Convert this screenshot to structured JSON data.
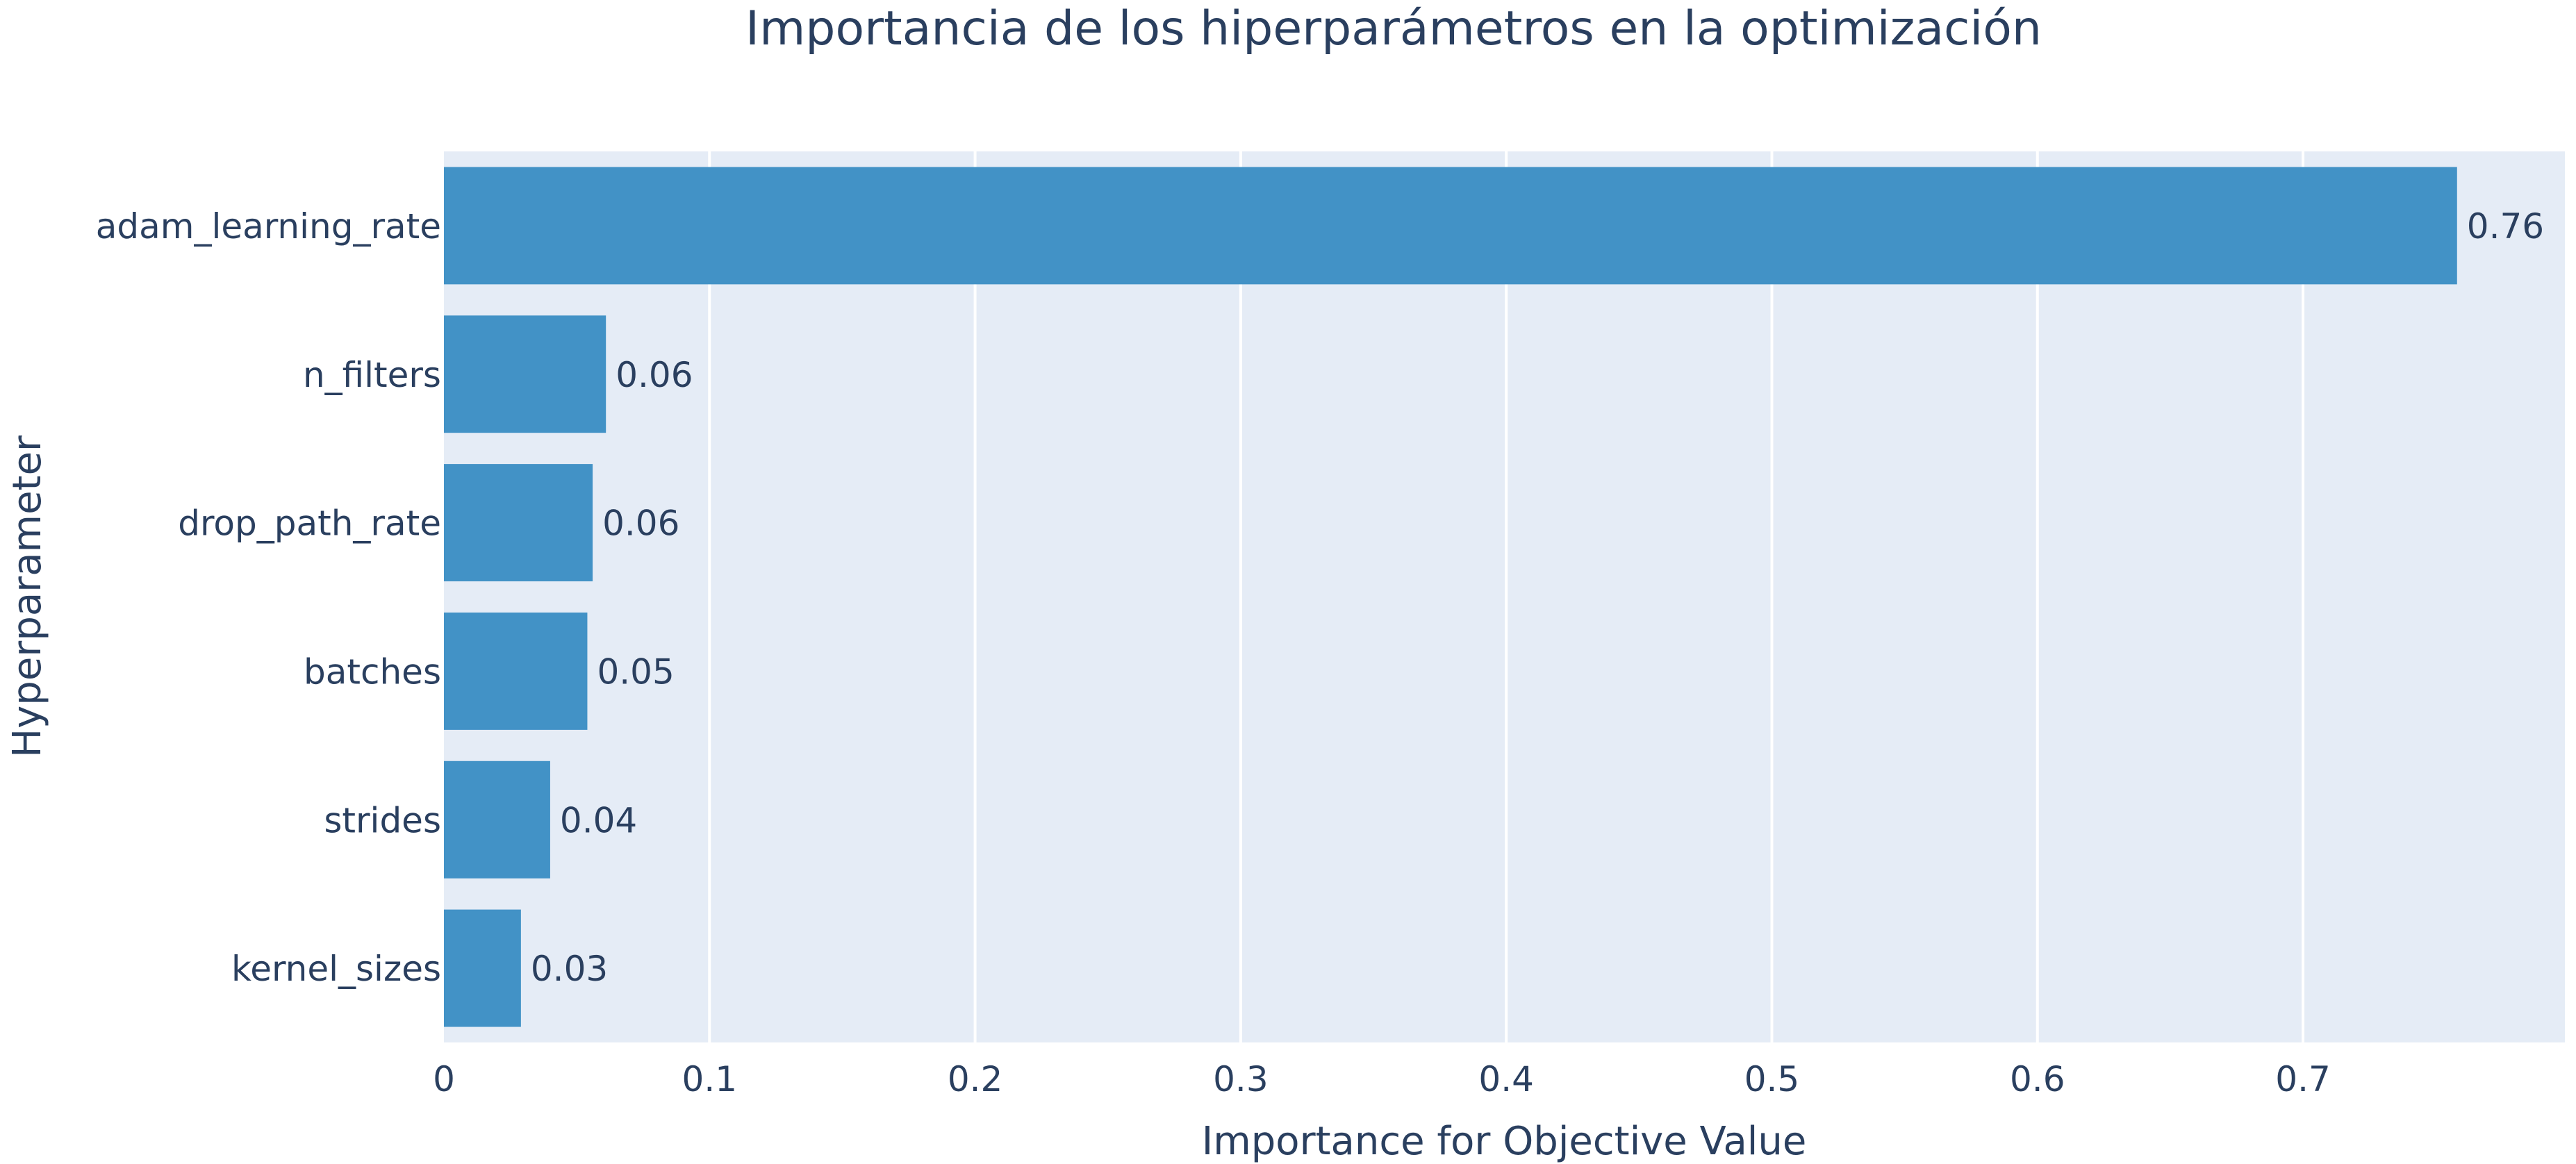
{
  "chart_data": {
    "type": "bar",
    "orientation": "horizontal",
    "title": "Importancia de los hiperparámetros en la optimización",
    "xlabel": "Importance for Objective Value",
    "ylabel": "Hyperparameter",
    "xlim": [
      0,
      0.7986
    ],
    "x_ticks": [
      "0",
      "0.1",
      "0.2",
      "0.3",
      "0.4",
      "0.5",
      "0.6",
      "0.7"
    ],
    "categories": [
      "adam_learning_rate",
      "n_filters",
      "drop_path_rate",
      "batches",
      "strides",
      "kernel_sizes"
    ],
    "values": [
      0.758,
      0.061,
      0.056,
      0.054,
      0.04,
      0.029
    ],
    "data_labels": [
      "0.76",
      "0.06",
      "0.06",
      "0.05",
      "0.04",
      "0.03"
    ],
    "grid": true,
    "colors": {
      "bar": "#4292c6",
      "plot_background": "#e5ecf6",
      "gridline": "#ffffff",
      "text": "#2a3f5f"
    }
  }
}
